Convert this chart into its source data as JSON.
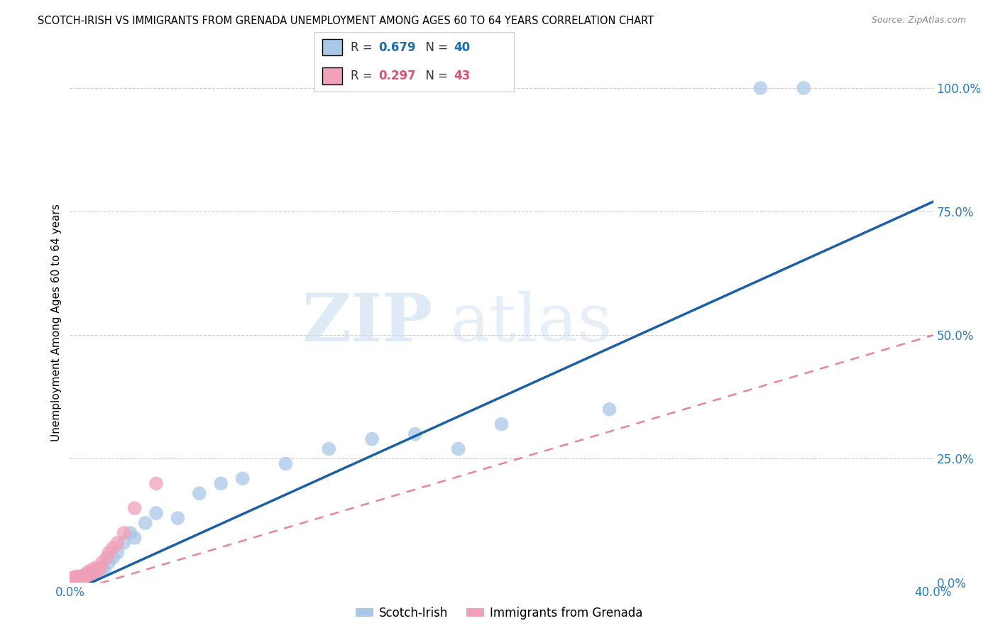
{
  "title": "SCOTCH-IRISH VS IMMIGRANTS FROM GRENADA UNEMPLOYMENT AMONG AGES 60 TO 64 YEARS CORRELATION CHART",
  "source": "Source: ZipAtlas.com",
  "ylabel": "Unemployment Among Ages 60 to 64 years",
  "watermark_zip": "ZIP",
  "watermark_atlas": "atlas",
  "scotch_irish": {
    "R": 0.679,
    "N": 40,
    "color": "#a8c8e8",
    "line_color": "#1a5fa8",
    "label": "Scotch-Irish",
    "x": [
      0.001,
      0.002,
      0.003,
      0.004,
      0.004,
      0.005,
      0.005,
      0.006,
      0.006,
      0.007,
      0.008,
      0.008,
      0.009,
      0.01,
      0.011,
      0.012,
      0.013,
      0.015,
      0.016,
      0.018,
      0.02,
      0.022,
      0.025,
      0.028,
      0.03,
      0.035,
      0.04,
      0.05,
      0.06,
      0.07,
      0.08,
      0.1,
      0.12,
      0.14,
      0.16,
      0.18,
      0.2,
      0.25,
      0.32,
      0.34
    ],
    "y": [
      0.001,
      0.002,
      0.003,
      0.003,
      0.005,
      0.004,
      0.008,
      0.005,
      0.01,
      0.008,
      0.01,
      0.015,
      0.012,
      0.015,
      0.018,
      0.02,
      0.025,
      0.03,
      0.025,
      0.04,
      0.05,
      0.06,
      0.08,
      0.1,
      0.09,
      0.12,
      0.14,
      0.13,
      0.18,
      0.2,
      0.21,
      0.24,
      0.27,
      0.29,
      0.3,
      0.27,
      0.32,
      0.35,
      1.0,
      1.0
    ]
  },
  "grenada": {
    "R": 0.297,
    "N": 43,
    "color": "#f0a0b8",
    "line_color": "#e05070",
    "label": "Immigrants from Grenada",
    "x": [
      0.0,
      0.0,
      0.0,
      0.001,
      0.001,
      0.001,
      0.001,
      0.002,
      0.002,
      0.002,
      0.002,
      0.002,
      0.003,
      0.003,
      0.003,
      0.003,
      0.004,
      0.004,
      0.004,
      0.005,
      0.005,
      0.005,
      0.006,
      0.006,
      0.007,
      0.007,
      0.008,
      0.008,
      0.009,
      0.01,
      0.01,
      0.011,
      0.012,
      0.013,
      0.014,
      0.015,
      0.017,
      0.018,
      0.02,
      0.022,
      0.025,
      0.03,
      0.04
    ],
    "y": [
      0.0,
      0.002,
      0.005,
      0.0,
      0.002,
      0.005,
      0.008,
      0.0,
      0.003,
      0.005,
      0.008,
      0.01,
      0.002,
      0.005,
      0.008,
      0.012,
      0.003,
      0.006,
      0.01,
      0.005,
      0.008,
      0.012,
      0.005,
      0.01,
      0.008,
      0.015,
      0.01,
      0.02,
      0.015,
      0.02,
      0.025,
      0.02,
      0.03,
      0.025,
      0.03,
      0.04,
      0.05,
      0.06,
      0.07,
      0.08,
      0.1,
      0.15,
      0.2
    ]
  },
  "si_line": {
    "x0": 0.0,
    "y0": -0.02,
    "x1": 0.4,
    "y1": 0.77
  },
  "gr_line": {
    "x0": 0.0,
    "y0": -0.02,
    "x1": 0.4,
    "y1": 0.5
  },
  "xmin": 0.0,
  "xmax": 0.4,
  "ymin": 0.0,
  "ymax": 1.05,
  "yticks": [
    0.0,
    0.25,
    0.5,
    0.75,
    1.0
  ],
  "ytick_labels": [
    "0.0%",
    "25.0%",
    "50.0%",
    "75.0%",
    "100.0%"
  ],
  "xticks": [
    0.0,
    0.1,
    0.2,
    0.3,
    0.4
  ],
  "xtick_labels": [
    "0.0%",
    "",
    "",
    "",
    "40.0%"
  ],
  "grid_color": "#cccccc",
  "legend_R_color_si": "#1a6faf",
  "legend_R_color_gr": "#e05070",
  "legend_N_color_si": "#1a6faf",
  "legend_N_color_gr": "#e05070"
}
